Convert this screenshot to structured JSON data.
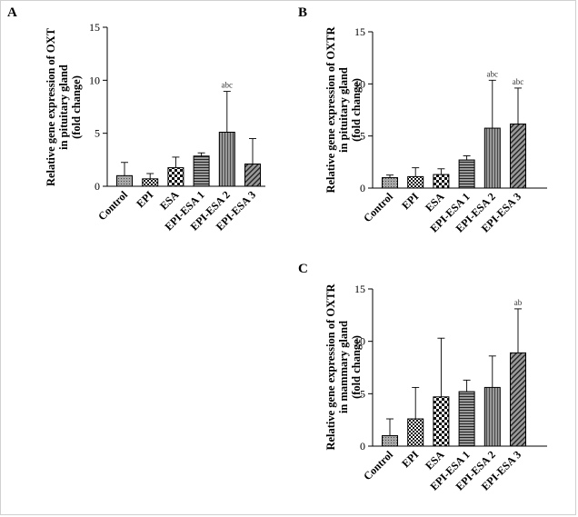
{
  "chart_data": [
    {
      "panel_label": "A",
      "type": "bar",
      "ylabel_lines": [
        "Relative gene expression of OXT",
        "in pituitary gland",
        "(fold change)"
      ],
      "categories": [
        "Control",
        "EPI",
        "ESA",
        "EPI-ESA 1",
        "EPI-ESA 2",
        "EPI-ESA 3"
      ],
      "values": [
        1.0,
        0.7,
        1.75,
        2.85,
        5.1,
        2.1
      ],
      "errors": [
        1.25,
        0.5,
        1.0,
        0.3,
        3.85,
        2.4
      ],
      "annotations": [
        "",
        "",
        "",
        "",
        "abc",
        ""
      ],
      "ylim": [
        0,
        15
      ],
      "yticks": [
        0,
        5,
        10,
        15
      ],
      "patterns": [
        "dots",
        "checker",
        "checker-big",
        "hlines",
        "vlines",
        "diag"
      ]
    },
    {
      "panel_label": "B",
      "type": "bar",
      "ylabel_lines": [
        "Relative gene expression of OXTR",
        "in pituitary gland",
        "(fold change)"
      ],
      "categories": [
        "Control",
        "EPI",
        "ESA",
        "EPI-ESA 1",
        "EPI-ESA 2",
        "EPI-ESA 3"
      ],
      "values": [
        1.0,
        1.1,
        1.3,
        2.7,
        5.75,
        6.15
      ],
      "errors": [
        0.25,
        0.85,
        0.55,
        0.4,
        4.6,
        3.45
      ],
      "annotations": [
        "",
        "",
        "",
        "",
        "abc",
        "abc"
      ],
      "ylim": [
        0,
        15
      ],
      "yticks": [
        0,
        5,
        10,
        15
      ],
      "patterns": [
        "dots",
        "checker",
        "checker-big",
        "hlines",
        "vlines",
        "diag"
      ]
    },
    {
      "panel_label": "C",
      "type": "bar",
      "ylabel_lines": [
        "Relative gene expression of OXTR",
        "in mammary gland",
        "(fold change)"
      ],
      "categories": [
        "Control",
        "EPI",
        "ESA",
        "EPI-ESA 1",
        "EPI-ESA 2",
        "EPI-ESA 3"
      ],
      "values": [
        1.0,
        2.6,
        4.7,
        5.2,
        5.6,
        8.9
      ],
      "errors": [
        1.6,
        3.0,
        5.6,
        1.1,
        3.0,
        4.2
      ],
      "annotations": [
        "",
        "",
        "",
        "",
        "",
        "ab"
      ],
      "ylim": [
        0,
        15
      ],
      "yticks": [
        0,
        5,
        10,
        15
      ],
      "patterns": [
        "dots",
        "checker",
        "checker-big",
        "hlines",
        "vlines",
        "diag"
      ]
    }
  ],
  "colors": {
    "bar_fill": "#9a9a9a",
    "axis": "#000000",
    "pattern_dark": "#111111"
  }
}
